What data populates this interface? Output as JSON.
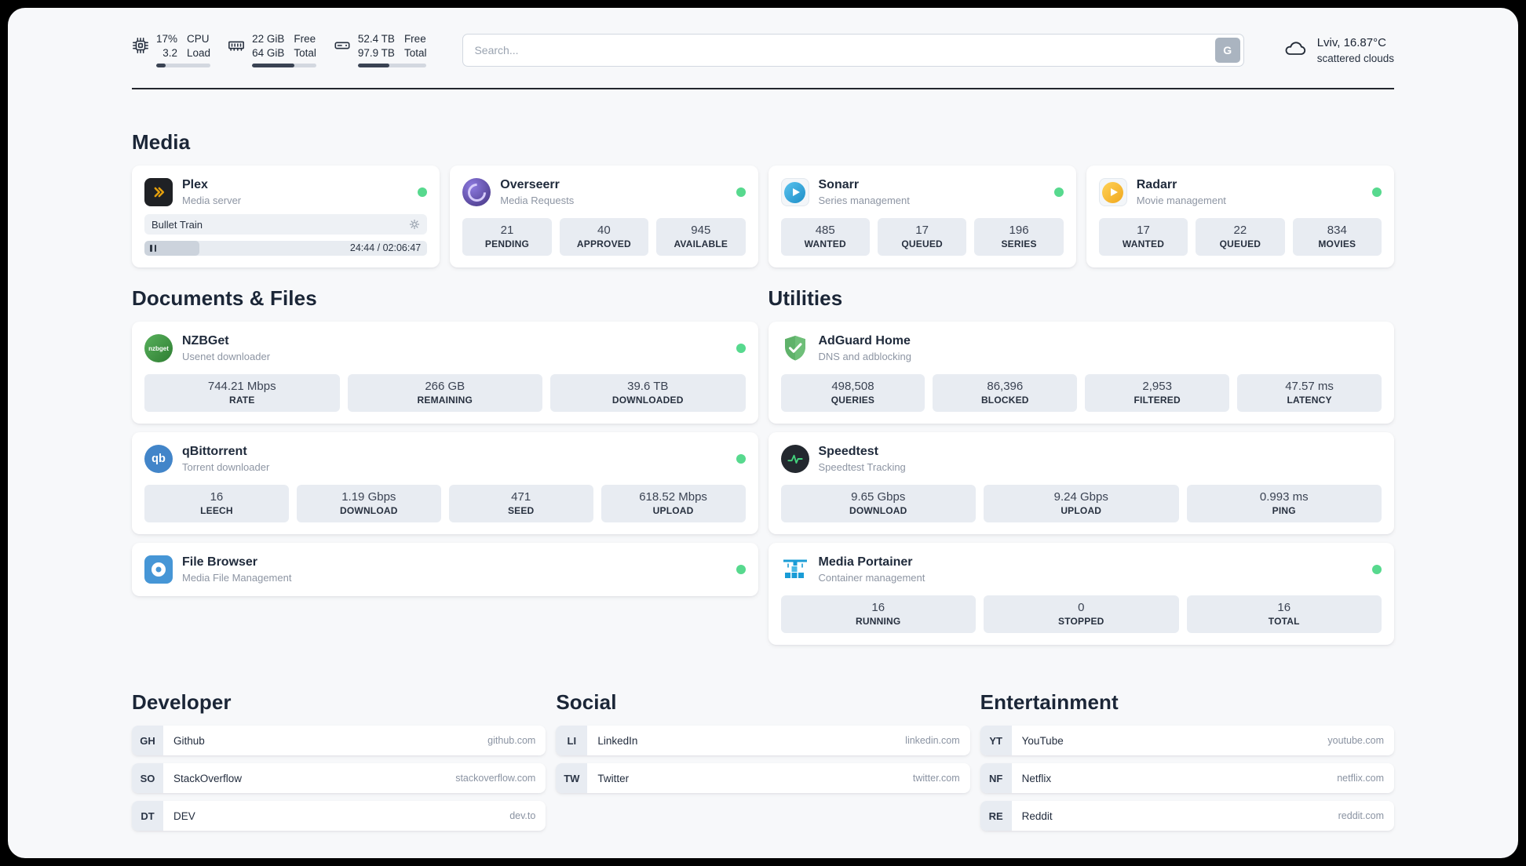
{
  "topbar": {
    "cpu": {
      "icon": "cpu-icon",
      "values": [
        "17%",
        "3.2"
      ],
      "labels": [
        "CPU",
        "Load"
      ],
      "bar_percent": 17
    },
    "ram": {
      "icon": "ram-icon",
      "values": [
        "22 GiB",
        "64 GiB"
      ],
      "labels": [
        "Free",
        "Total"
      ],
      "bar_percent": 66
    },
    "disk": {
      "icon": "disk-icon",
      "values": [
        "52.4 TB",
        "97.9 TB"
      ],
      "labels": [
        "Free",
        "Total"
      ],
      "bar_percent": 46
    },
    "search": {
      "placeholder": "Search...",
      "engine_button": "G"
    },
    "weather": {
      "icon": "cloud-icon",
      "location": "Lviv, 16.87°C",
      "condition": "scattered clouds"
    }
  },
  "sections": {
    "media": "Media",
    "documents": "Documents & Files",
    "utilities": "Utilities",
    "developer": "Developer",
    "social": "Social",
    "entertainment": "Entertainment"
  },
  "services": {
    "plex": {
      "title": "Plex",
      "subtitle": "Media server",
      "icon": "plex-icon",
      "status": "online",
      "now_playing": "Bullet Train",
      "time_display": "24:44 / 02:06:47",
      "progress_percent": 19.5
    },
    "overseerr": {
      "title": "Overseerr",
      "subtitle": "Media Requests",
      "icon": "overseerr-icon",
      "status": "online",
      "stats": [
        {
          "value": "21",
          "label": "PENDING"
        },
        {
          "value": "40",
          "label": "APPROVED"
        },
        {
          "value": "945",
          "label": "AVAILABLE"
        }
      ]
    },
    "sonarr": {
      "title": "Sonarr",
      "subtitle": "Series management",
      "icon": "sonarr-icon",
      "status": "online",
      "stats": [
        {
          "value": "485",
          "label": "WANTED"
        },
        {
          "value": "17",
          "label": "QUEUED"
        },
        {
          "value": "196",
          "label": "SERIES"
        }
      ]
    },
    "radarr": {
      "title": "Radarr",
      "subtitle": "Movie management",
      "icon": "radarr-icon",
      "status": "online",
      "stats": [
        {
          "value": "17",
          "label": "WANTED"
        },
        {
          "value": "22",
          "label": "QUEUED"
        },
        {
          "value": "834",
          "label": "MOVIES"
        }
      ]
    },
    "nzbget": {
      "title": "NZBGet",
      "subtitle": "Usenet downloader",
      "icon": "nzbget-icon",
      "icon_text": "nzbget",
      "status": "online",
      "stats": [
        {
          "value": "744.21 Mbps",
          "label": "RATE"
        },
        {
          "value": "266 GB",
          "label": "REMAINING"
        },
        {
          "value": "39.6 TB",
          "label": "DOWNLOADED"
        }
      ]
    },
    "qbittorrent": {
      "title": "qBittorrent",
      "subtitle": "Torrent downloader",
      "icon": "qbittorrent-icon",
      "icon_text": "qb",
      "status": "online",
      "stats": [
        {
          "value": "16",
          "label": "LEECH"
        },
        {
          "value": "1.19 Gbps",
          "label": "DOWNLOAD"
        },
        {
          "value": "471",
          "label": "SEED"
        },
        {
          "value": "618.52 Mbps",
          "label": "UPLOAD"
        }
      ]
    },
    "filebrowser": {
      "title": "File Browser",
      "subtitle": "Media File Management",
      "icon": "filebrowser-icon",
      "status": "online"
    },
    "adguard": {
      "title": "AdGuard Home",
      "subtitle": "DNS and adblocking",
      "icon": "adguard-icon",
      "stats": [
        {
          "value": "498,508",
          "label": "QUERIES"
        },
        {
          "value": "86,396",
          "label": "BLOCKED"
        },
        {
          "value": "2,953",
          "label": "FILTERED"
        },
        {
          "value": "47.57 ms",
          "label": "LATENCY"
        }
      ]
    },
    "speedtest": {
      "title": "Speedtest",
      "subtitle": "Speedtest Tracking",
      "icon": "speedtest-icon",
      "stats": [
        {
          "value": "9.65 Gbps",
          "label": "DOWNLOAD"
        },
        {
          "value": "9.24 Gbps",
          "label": "UPLOAD"
        },
        {
          "value": "0.993 ms",
          "label": "PING"
        }
      ]
    },
    "portainer": {
      "title": "Media Portainer",
      "subtitle": "Container management",
      "icon": "portainer-icon",
      "status": "online",
      "stats": [
        {
          "value": "16",
          "label": "RUNNING"
        },
        {
          "value": "0",
          "label": "STOPPED"
        },
        {
          "value": "16",
          "label": "TOTAL"
        }
      ]
    }
  },
  "bookmarks": {
    "developer": [
      {
        "abbr": "GH",
        "name": "Github",
        "domain": "github.com"
      },
      {
        "abbr": "SO",
        "name": "StackOverflow",
        "domain": "stackoverflow.com"
      },
      {
        "abbr": "DT",
        "name": "DEV",
        "domain": "dev.to"
      }
    ],
    "social": [
      {
        "abbr": "LI",
        "name": "LinkedIn",
        "domain": "linkedin.com"
      },
      {
        "abbr": "TW",
        "name": "Twitter",
        "domain": "twitter.com"
      }
    ],
    "entertainment": [
      {
        "abbr": "YT",
        "name": "YouTube",
        "domain": "youtube.com"
      },
      {
        "abbr": "NF",
        "name": "Netflix",
        "domain": "netflix.com"
      },
      {
        "abbr": "RE",
        "name": "Reddit",
        "domain": "reddit.com"
      }
    ]
  },
  "colors": {
    "status_online": "#57d98e",
    "panel_bg": "#f7f8fa",
    "tile_bg": "#e8ecf2",
    "plex_amber": "#e5a00d"
  }
}
